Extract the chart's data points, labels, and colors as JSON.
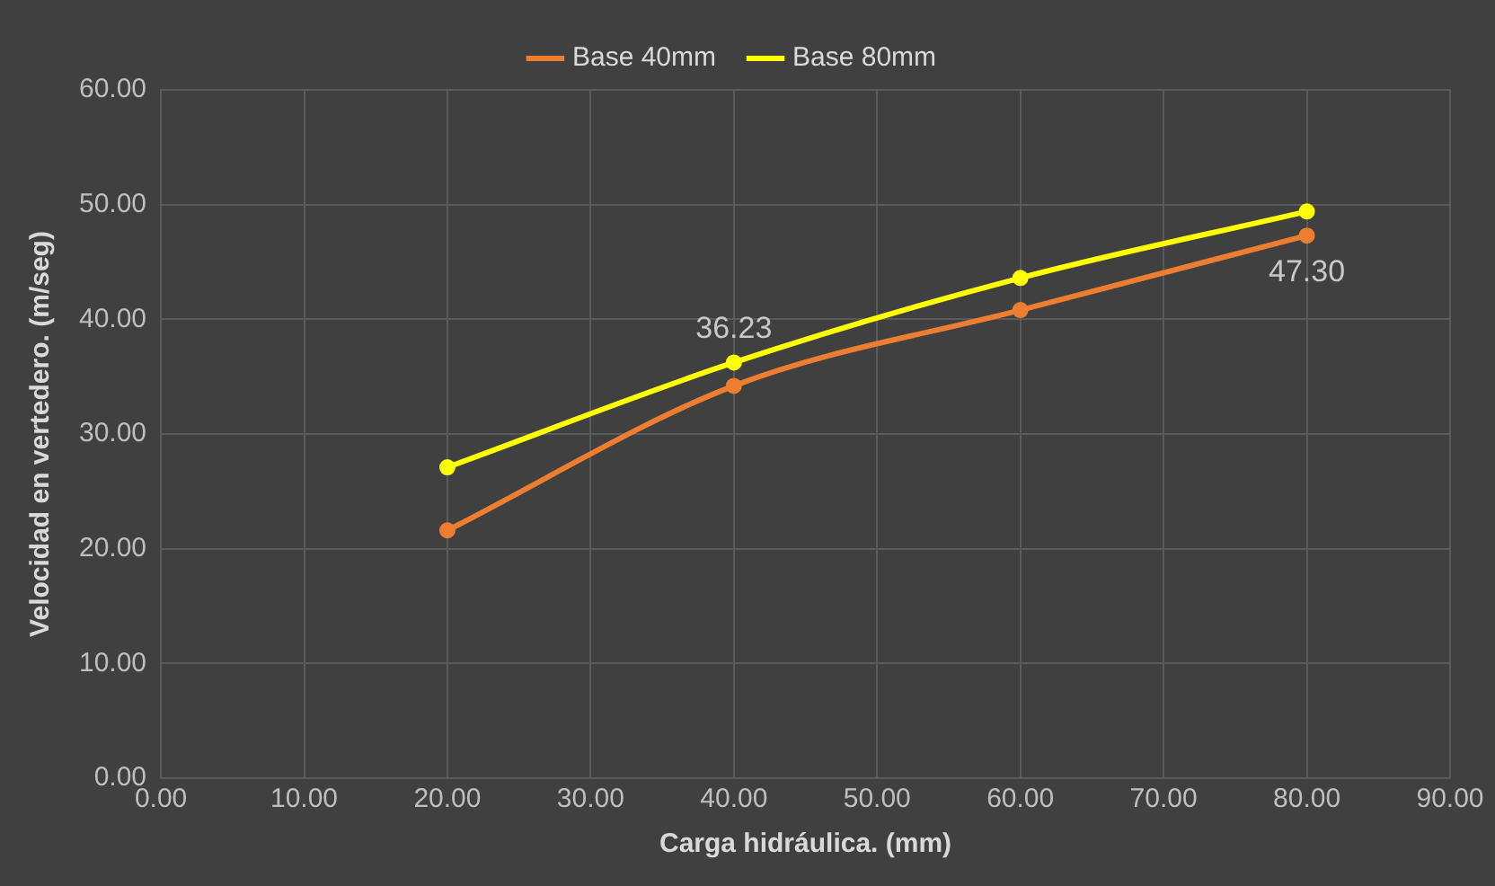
{
  "chart_data": {
    "type": "line",
    "xlabel": "Carga hidráulica. (mm)",
    "ylabel": "Velocidad en vertedero. (m/seg)",
    "x": [
      20,
      40,
      60,
      80
    ],
    "series": [
      {
        "name": "Base 40mm",
        "color": "#ed7d31",
        "values": [
          21.6,
          34.2,
          40.8,
          47.3
        ],
        "value_labels": [
          null,
          null,
          null,
          "47.30"
        ]
      },
      {
        "name": "Base 80mm",
        "color": "#ffff00",
        "values": [
          27.1,
          36.23,
          43.6,
          49.4
        ],
        "value_labels": [
          null,
          "36.23",
          null,
          null
        ]
      }
    ],
    "xlim": [
      0,
      90
    ],
    "xticks": [
      {
        "value": 0,
        "label": "0.00"
      },
      {
        "value": 10,
        "label": "10.00"
      },
      {
        "value": 20,
        "label": "20.00"
      },
      {
        "value": 30,
        "label": "30.00"
      },
      {
        "value": 40,
        "label": "40.00"
      },
      {
        "value": 50,
        "label": "50.00"
      },
      {
        "value": 60,
        "label": "60.00"
      },
      {
        "value": 70,
        "label": "70.00"
      },
      {
        "value": 80,
        "label": "80.00"
      },
      {
        "value": 90,
        "label": "90.00"
      }
    ],
    "ylim": [
      0,
      60
    ],
    "yticks": [
      {
        "value": 0,
        "label": "0.00"
      },
      {
        "value": 10,
        "label": "10.00"
      },
      {
        "value": 20,
        "label": "20.00"
      },
      {
        "value": 30,
        "label": "30.00"
      },
      {
        "value": 40,
        "label": "40.00"
      },
      {
        "value": 50,
        "label": "50.00"
      },
      {
        "value": 60,
        "label": "60.00"
      }
    ],
    "grid": true,
    "legend": "top",
    "marker": "circle",
    "line_style": "solid"
  }
}
